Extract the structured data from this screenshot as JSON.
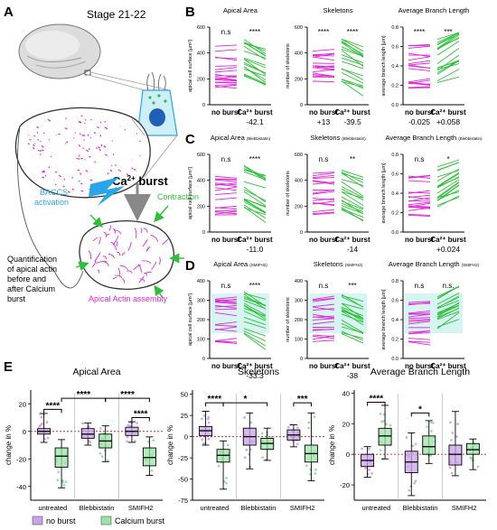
{
  "colors": {
    "magenta": "#e026d8",
    "green": "#2fbf3a",
    "blue": "#2aa6e6",
    "purple": "#c9a2ea",
    "lightgreen": "#9be3a7",
    "dark": "#111111"
  },
  "panel_a": {
    "letter": "A",
    "stage": "Stage 21-22",
    "burst_label": "Ca",
    "burst_sup": "2+",
    "burst_word": " burst",
    "baccs_line1": "BACCS",
    "baccs_line2": "activation",
    "contraction": "Contraction",
    "assembly": "Apical Actin assembly",
    "quant_lines": [
      "Quantification",
      "of apical actin",
      "before and",
      "after Calcium",
      "burst"
    ]
  },
  "rows": [
    {
      "letter": "B",
      "panels": [
        {
          "title": "Apical Area",
          "sub": "",
          "ylabel": "apical cell surface [µm²]",
          "ticks": [
            "600",
            "400",
            "200",
            "0"
          ],
          "sig_left": "n.s",
          "sig_right": "****",
          "delta_left": "",
          "delta_right": "-42.1",
          "trend": -1,
          "shade": false
        },
        {
          "title": "Skeletons",
          "sub": "",
          "ylabel": "number of skeletons",
          "ticks": [
            "600",
            "400",
            "200",
            "0"
          ],
          "sig_left": "****",
          "sig_right": "****",
          "delta_left": "+13",
          "delta_right": "-39.5",
          "trend": -1,
          "shade": false
        },
        {
          "title": "Average Branch Length",
          "sub": "",
          "ylabel": "average branch length [µm]",
          "ticks": [
            "0.8",
            "0.6",
            "0.4",
            "0.2",
            "0.0"
          ],
          "sig_left": "****",
          "sig_right": "***",
          "delta_left": "-0.025",
          "delta_right": "+0.058",
          "trend": 1,
          "shade": false
        }
      ]
    },
    {
      "letter": "C",
      "panels": [
        {
          "title": "Apical Area",
          "sub": "(Blebbistatin)",
          "ylabel": "apical cell surface [µm²]",
          "ticks": [
            "600",
            "400",
            "200",
            "0"
          ],
          "sig_left": "n.s",
          "sig_right": "****",
          "delta_left": "",
          "delta_right": "-11.0",
          "trend": -1,
          "shade": false
        },
        {
          "title": "Skeletons",
          "sub": "(Blebbistatin)",
          "ylabel": "number of skeletons",
          "ticks": [
            "600",
            "400",
            "200",
            "0"
          ],
          "sig_left": "n.s",
          "sig_right": "**",
          "delta_left": "",
          "delta_right": "-14",
          "trend": -1,
          "shade": false
        },
        {
          "title": "Average Branch Length",
          "sub": "(Blebbistatin)",
          "ylabel": "average branch length [µm]",
          "ticks": [
            "0.8",
            "0.6",
            "0.4",
            "0.2",
            "0.0"
          ],
          "sig_left": "n.s",
          "sig_right": "*",
          "delta_left": "",
          "delta_right": "+0.024",
          "trend": 1,
          "shade": false
        }
      ]
    },
    {
      "letter": "D",
      "panels": [
        {
          "title": "Apical Area",
          "sub": "(SMIFH2)",
          "ylabel": "apical cell surface [µm²]",
          "ticks": [
            "400",
            "300",
            "200",
            "100",
            "0"
          ],
          "sig_left": "n.s",
          "sig_right": "****",
          "delta_left": "",
          "delta_right": "-33.3",
          "trend": -1,
          "shade": true
        },
        {
          "title": "Skeletons",
          "sub": "(SMIFH2)",
          "ylabel": "number of skeletons",
          "ticks": [
            "400",
            "300",
            "200",
            "100",
            "0"
          ],
          "sig_left": "n.s",
          "sig_right": "***",
          "delta_left": "",
          "delta_right": "-38",
          "trend": -1,
          "shade": true
        },
        {
          "title": "Average Branch Length",
          "sub": "(SMIFH2)",
          "ylabel": "average branch length [µm]",
          "ticks": [
            "0.8",
            "0.6",
            "0.4",
            "0.2",
            "0.0"
          ],
          "sig_left": "n.s",
          "sig_right": "n.s.",
          "delta_left": "",
          "delta_right": "",
          "trend": 1,
          "shade": true
        }
      ]
    }
  ],
  "xcats": [
    "no burst",
    "Ca²⁺ burst"
  ],
  "panel_e": {
    "letter": "E",
    "ylabel": "change in %",
    "groups": [
      "untreated",
      "Blebbistatin",
      "SMIFH2"
    ],
    "legend": [
      {
        "label": "no burst",
        "color": "#c9a2ea"
      },
      {
        "label": "Calcium burst",
        "color": "#9be3a7"
      }
    ],
    "charts": [
      {
        "title": "Apical Area",
        "ymin": -50,
        "ymax": 30,
        "ticks": [
          20,
          0,
          -20,
          -40
        ],
        "boxes": [
          {
            "q1": -2,
            "med": 0,
            "q3": 2,
            "lo": -8,
            "hi": 13
          },
          {
            "q1": -26,
            "med": -18,
            "q3": -12,
            "lo": -41,
            "hi": -6
          },
          {
            "q1": -5,
            "med": -2,
            "q3": 2,
            "lo": -10,
            "hi": 6
          },
          {
            "q1": -12,
            "med": -7,
            "q3": -2,
            "lo": -22,
            "hi": 4
          },
          {
            "q1": -3,
            "med": 0,
            "q3": 3,
            "lo": -8,
            "hi": 7
          },
          {
            "q1": -25,
            "med": -19,
            "q3": -12,
            "lo": -32,
            "hi": -4
          }
        ],
        "brackets": [
          {
            "a": 0,
            "b": 1,
            "y": 16,
            "label": "****"
          },
          {
            "a": 1,
            "b": 3,
            "y": 24,
            "label": "****"
          },
          {
            "a": 3,
            "b": 5,
            "y": 24,
            "label": "****"
          },
          {
            "a": 4,
            "b": 5,
            "y": 10,
            "label": "****"
          }
        ]
      },
      {
        "title": "Skeletons",
        "ymin": -75,
        "ymax": 55,
        "ticks": [
          50,
          25,
          0,
          -25,
          -50,
          -75
        ],
        "boxes": [
          {
            "q1": 1,
            "med": 7,
            "q3": 12,
            "lo": -10,
            "hi": 30
          },
          {
            "q1": -30,
            "med": -22,
            "q3": -15,
            "lo": -62,
            "hi": -5
          },
          {
            "q1": -10,
            "med": 0,
            "q3": 10,
            "lo": -38,
            "hi": 28
          },
          {
            "q1": -15,
            "med": -8,
            "q3": -2,
            "lo": -28,
            "hi": 10
          },
          {
            "q1": -4,
            "med": 2,
            "q3": 8,
            "lo": -12,
            "hi": 14
          },
          {
            "q1": -30,
            "med": -20,
            "q3": -10,
            "lo": -52,
            "hi": 28
          }
        ],
        "brackets": [
          {
            "a": 0,
            "b": 1,
            "y": 40,
            "label": "****"
          },
          {
            "a": 1,
            "b": 3,
            "y": 40,
            "label": "*"
          },
          {
            "a": 4,
            "b": 5,
            "y": 40,
            "label": "***"
          }
        ]
      },
      {
        "title": "Average Branch Length",
        "ymin": -30,
        "ymax": 42,
        "ticks": [
          40,
          20,
          0,
          -20
        ],
        "boxes": [
          {
            "q1": -8,
            "med": -4,
            "q3": 0,
            "lo": -15,
            "hi": 5
          },
          {
            "q1": 6,
            "med": 12,
            "q3": 17,
            "lo": -3,
            "hi": 32
          },
          {
            "q1": -12,
            "med": -5,
            "q3": 2,
            "lo": -27,
            "hi": 14
          },
          {
            "q1": 0,
            "med": 5,
            "q3": 12,
            "lo": -6,
            "hi": 22
          },
          {
            "q1": -7,
            "med": 0,
            "q3": 6,
            "lo": -14,
            "hi": 28
          },
          {
            "q1": 0,
            "med": 3,
            "q3": 7,
            "lo": -10,
            "hi": 10
          }
        ],
        "brackets": [
          {
            "a": 0,
            "b": 1,
            "y": 34,
            "label": "****"
          },
          {
            "a": 2,
            "b": 3,
            "y": 27,
            "label": "*"
          }
        ]
      }
    ]
  }
}
